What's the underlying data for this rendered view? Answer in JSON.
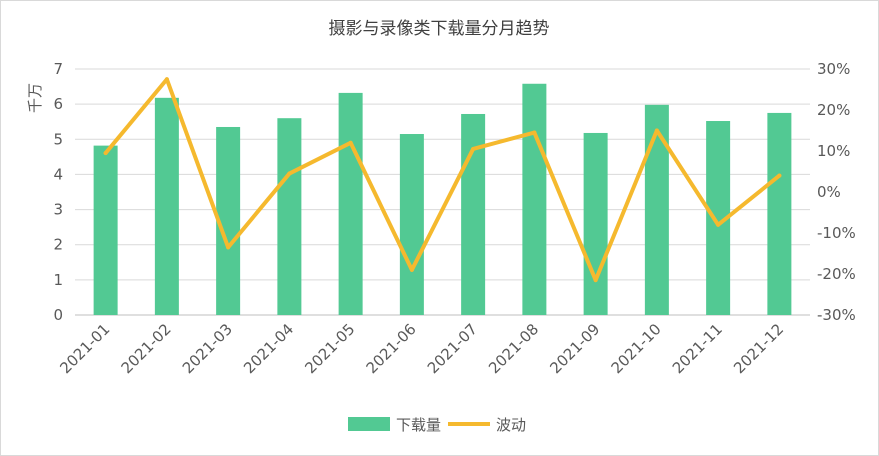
{
  "chart_data": {
    "type": "bar",
    "title": "摄影与录像类下载量分月趋势",
    "ylabel": "千万",
    "categories": [
      "2021-01",
      "2021-02",
      "2021-03",
      "2021-04",
      "2021-05",
      "2021-06",
      "2021-07",
      "2021-08",
      "2021-09",
      "2021-10",
      "2021-11",
      "2021-12"
    ],
    "ylim": [
      0,
      7
    ],
    "yticks": [
      "0",
      "1",
      "2",
      "3",
      "4",
      "5",
      "6",
      "7"
    ],
    "y2lim": [
      -30,
      30
    ],
    "y2ticks": [
      "-30%",
      "-20%",
      "-10%",
      "0%",
      "10%",
      "20%",
      "30%"
    ],
    "grid": true,
    "legend_position": "bottom",
    "series": [
      {
        "name": "下载量",
        "type": "bar",
        "axis": "left",
        "color": "#52c993",
        "values": [
          4.82,
          6.18,
          5.35,
          5.6,
          6.32,
          5.15,
          5.72,
          6.58,
          5.18,
          5.98,
          5.52,
          5.75
        ]
      },
      {
        "name": "波动",
        "type": "line",
        "axis": "right",
        "color": "#f5b92e",
        "values": [
          9.5,
          27.5,
          -13.5,
          4.5,
          12.0,
          -19.0,
          10.5,
          14.5,
          -21.5,
          15.0,
          -8.0,
          4.0
        ]
      }
    ]
  }
}
